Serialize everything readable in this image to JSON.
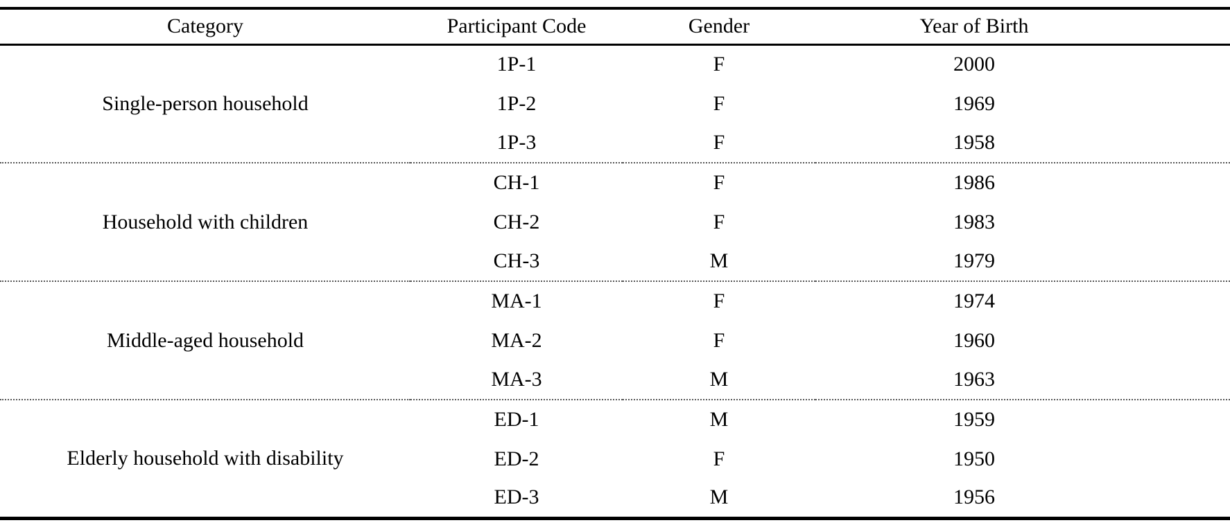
{
  "table": {
    "headers": {
      "category": "Category",
      "code": "Participant Code",
      "gender": "Gender",
      "year": "Year of Birth"
    },
    "groups": [
      {
        "category": "Single-person household",
        "rows": [
          {
            "code": "1P-1",
            "gender": "F",
            "year": "2000"
          },
          {
            "code": "1P-2",
            "gender": "F",
            "year": "1969"
          },
          {
            "code": "1P-3",
            "gender": "F",
            "year": "1958"
          }
        ]
      },
      {
        "category": "Household with children",
        "rows": [
          {
            "code": "CH-1",
            "gender": "F",
            "year": "1986"
          },
          {
            "code": "CH-2",
            "gender": "F",
            "year": "1983"
          },
          {
            "code": "CH-3",
            "gender": "M",
            "year": "1979"
          }
        ]
      },
      {
        "category": "Middle-aged household",
        "rows": [
          {
            "code": "MA-1",
            "gender": "F",
            "year": "1974"
          },
          {
            "code": "MA-2",
            "gender": "F",
            "year": "1960"
          },
          {
            "code": "MA-3",
            "gender": "M",
            "year": "1963"
          }
        ]
      },
      {
        "category": "Elderly household with disability",
        "rows": [
          {
            "code": "ED-1",
            "gender": "M",
            "year": "1959"
          },
          {
            "code": "ED-2",
            "gender": "F",
            "year": "1950"
          },
          {
            "code": "ED-3",
            "gender": "M",
            "year": "1956"
          }
        ]
      }
    ]
  }
}
